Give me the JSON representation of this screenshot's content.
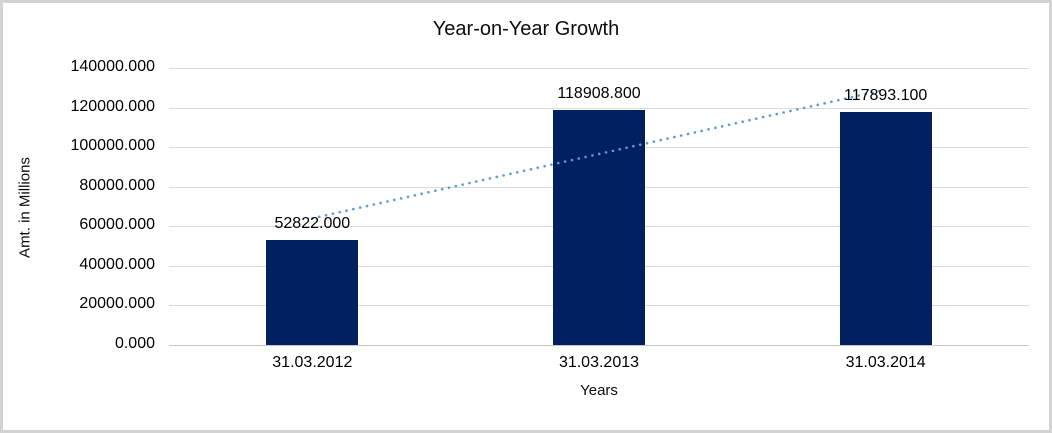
{
  "chart_data": {
    "type": "bar",
    "title": "Year-on-Year Growth",
    "xlabel": "Years",
    "ylabel": "Amt. in Millions",
    "categories": [
      "31.03.2012",
      "31.03.2013",
      "31.03.2014"
    ],
    "values": [
      52822.0,
      118908.8,
      117893.1
    ],
    "value_labels": [
      "52822.000",
      "118908.800",
      "117893.100"
    ],
    "ylim": [
      0,
      140000
    ],
    "ytick_step": 20000,
    "ytick_labels": [
      "0.000",
      "20000.000",
      "40000.000",
      "60000.000",
      "80000.000",
      "100000.000",
      "120000.000",
      "140000.000"
    ],
    "grid": true,
    "legend": false,
    "bar_color": "#002060",
    "gridline_color": "#d9d9d9",
    "trendline": {
      "type": "linear",
      "style": "dotted",
      "color": "#5b9bd5",
      "start_value": 64006,
      "end_value": 129077
    }
  }
}
